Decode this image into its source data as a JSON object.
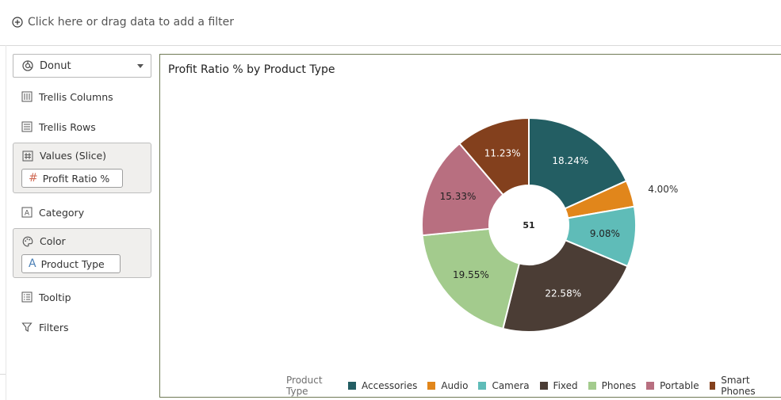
{
  "filter_bar": {
    "add_label": "Click here or drag data to add a filter"
  },
  "grammar": {
    "chart_type": "Donut",
    "trellis_columns": "Trellis Columns",
    "trellis_rows": "Trellis Rows",
    "values_slice": {
      "label": "Values (Slice)",
      "item": "Profit Ratio %"
    },
    "category": "Category",
    "color": {
      "label": "Color",
      "item": "Product Type"
    },
    "tooltip": "Tooltip",
    "filters": "Filters"
  },
  "canvas": {
    "title": "Profit Ratio % by Product Type"
  },
  "chart_data": {
    "type": "pie",
    "variant": "donut",
    "title": "Profit Ratio % by Product Type",
    "center_label": "51",
    "legend_title": "Product Type",
    "legend_position": "bottom-right",
    "categories": [
      "Accessories",
      "Audio",
      "Camera",
      "Fixed",
      "Phones",
      "Portable",
      "Smart Phones"
    ],
    "values": [
      18.24,
      4.0,
      9.08,
      22.58,
      19.55,
      15.33,
      11.23
    ],
    "labels": [
      "18.24%",
      "4.00%",
      "9.08%",
      "22.58%",
      "19.55%",
      "15.33%",
      "11.23%"
    ],
    "colors": [
      "#235e63",
      "#e1861b",
      "#5fbcb8",
      "#4b3d35",
      "#a3cb8d",
      "#b86f80",
      "#83401d"
    ]
  }
}
